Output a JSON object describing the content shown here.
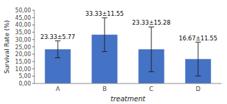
{
  "chart_data": {
    "type": "bar",
    "categories": [
      "A",
      "B",
      "C",
      "D"
    ],
    "values": [
      23.33,
      33.33,
      23.33,
      16.67
    ],
    "errors": [
      5.77,
      11.55,
      15.28,
      11.55
    ],
    "data_labels": true,
    "value_labels": [
      "23.33±5.77",
      "33.33±11.55",
      "23.33±15.28",
      "16.67±11.55"
    ],
    "color": "#4472C4",
    "xlabel": "treatment",
    "ylabel": "Survival Rate (%)",
    "ylim": [
      0,
      50
    ],
    "yticks": [
      {
        "value": 0.0,
        "label": "0,00"
      },
      {
        "value": 5.0,
        "label": "5,00"
      },
      {
        "value": 10.0,
        "label": "10,00"
      },
      {
        "value": 15.0,
        "label": "15,00"
      },
      {
        "value": 20.0,
        "label": "20,00"
      },
      {
        "value": 25.0,
        "label": "25,00"
      },
      {
        "value": 30.0,
        "label": "30,00"
      },
      {
        "value": 35.0,
        "label": "35,00"
      },
      {
        "value": 40.0,
        "label": "40,00"
      },
      {
        "value": 45.0,
        "label": "45,00"
      },
      {
        "value": 50.0,
        "label": "50,00"
      }
    ],
    "grid": false
  }
}
